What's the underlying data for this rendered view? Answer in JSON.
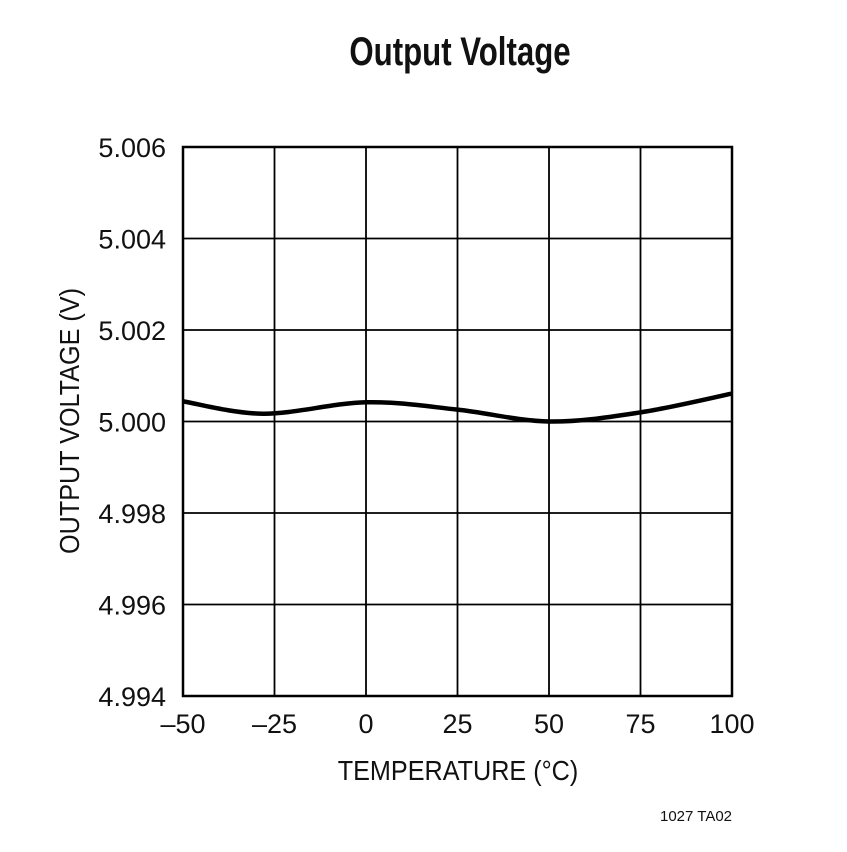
{
  "chart_data": {
    "type": "line",
    "title": "Output Voltage",
    "xlabel": "TEMPERATURE (°C)",
    "ylabel": "OUTPUT VOLTAGE (V)",
    "xlim": [
      -50,
      100
    ],
    "ylim": [
      4.994,
      5.006
    ],
    "x_ticks": [
      "–50",
      "–25",
      "0",
      "25",
      "50",
      "75",
      "100"
    ],
    "x_tick_values": [
      -50,
      -25,
      0,
      25,
      50,
      75,
      100
    ],
    "y_ticks": [
      "4.994",
      "4.996",
      "4.998",
      "5.000",
      "5.002",
      "5.004",
      "5.006"
    ],
    "y_tick_values": [
      4.994,
      4.996,
      4.998,
      5.0,
      5.002,
      5.004,
      5.006
    ],
    "grid": true,
    "series": [
      {
        "x": [
          -50,
          -28,
          0,
          25,
          50,
          75,
          100
        ],
        "y": [
          5.00044,
          5.00017,
          5.00042,
          5.00026,
          5.0,
          5.0002,
          5.00061
        ],
        "color": "#000000"
      }
    ]
  },
  "footnote": "1027 TA02"
}
